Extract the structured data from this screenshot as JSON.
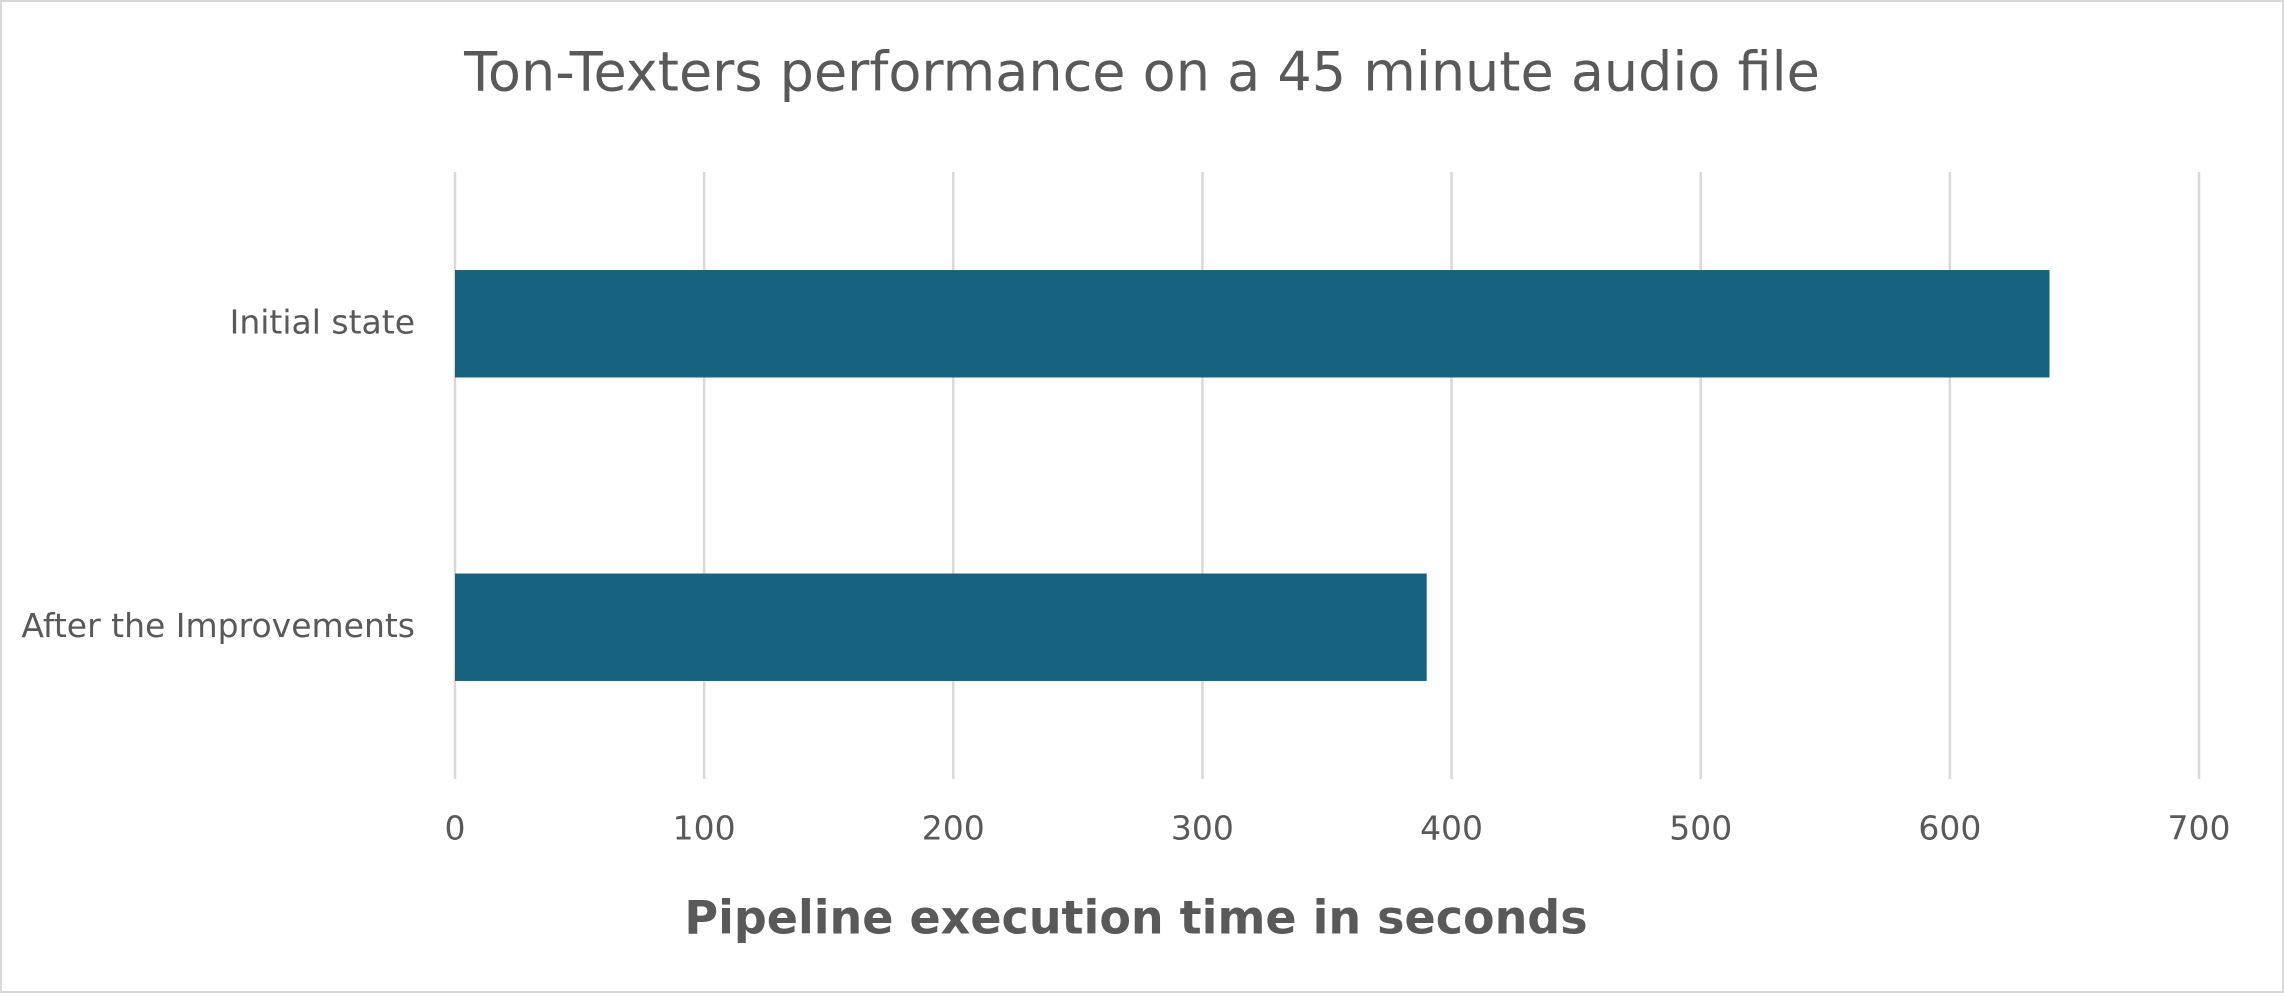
{
  "chart_data": {
    "type": "bar",
    "orientation": "horizontal",
    "title": "Ton-Texters performance on a 45 minute audio file",
    "x_label": "Pipeline execution time in seconds",
    "categories": [
      "Initial state",
      "After the Improvements"
    ],
    "values": [
      640,
      390
    ],
    "color": "#17627f",
    "xlim": [
      0,
      700
    ],
    "xticks": [
      0,
      100,
      200,
      300,
      400,
      500,
      600,
      700
    ],
    "grid": true
  }
}
